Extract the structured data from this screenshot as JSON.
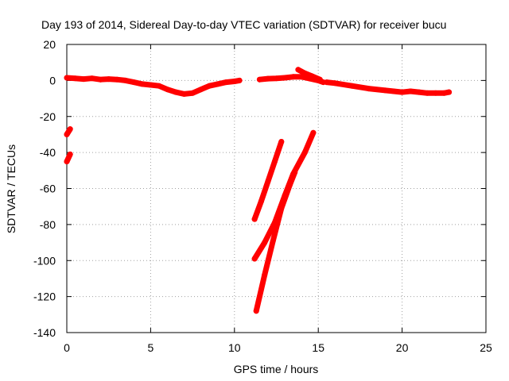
{
  "chart_data": {
    "type": "scatter",
    "title": "Day 193 of 2014, Sidereal Day-to-day VTEC variation (SDTVAR) for receiver bucu",
    "xlabel": "GPS time / hours",
    "ylabel": "SDTVAR / TECUs",
    "xlim": [
      0,
      25
    ],
    "ylim": [
      -140,
      20
    ],
    "xticks": [
      "0",
      "5",
      "10",
      "15",
      "20",
      "25"
    ],
    "yticks": [
      "20",
      "0",
      "-20",
      "-40",
      "-60",
      "-80",
      "-100",
      "-120",
      "-140"
    ],
    "grid": true,
    "color": "#ff0000",
    "series": [
      {
        "name": "main-band",
        "points": [
          [
            0.0,
            1.5
          ],
          [
            0.5,
            1.2
          ],
          [
            1.0,
            0.8
          ],
          [
            1.5,
            1.2
          ],
          [
            2.0,
            0.5
          ],
          [
            2.5,
            0.8
          ],
          [
            3.0,
            0.5
          ],
          [
            3.5,
            0.0
          ],
          [
            4.0,
            -1.0
          ],
          [
            4.5,
            -2.0
          ],
          [
            5.0,
            -2.5
          ],
          [
            5.5,
            -3.0
          ],
          [
            6.0,
            -5.0
          ],
          [
            6.5,
            -6.5
          ],
          [
            7.0,
            -7.5
          ],
          [
            7.5,
            -7.0
          ],
          [
            8.0,
            -5.0
          ],
          [
            8.5,
            -3.0
          ],
          [
            9.0,
            -2.0
          ],
          [
            9.5,
            -1.0
          ],
          [
            10.0,
            -0.5
          ],
          [
            10.3,
            0.0
          ]
        ]
      },
      {
        "name": "segment-2",
        "points": [
          [
            11.5,
            0.5
          ],
          [
            12.0,
            1.0
          ],
          [
            12.5,
            1.2
          ],
          [
            13.0,
            1.5
          ],
          [
            13.5,
            2.0
          ],
          [
            14.0,
            2.0
          ],
          [
            14.5,
            1.0
          ],
          [
            15.0,
            0.0
          ],
          [
            15.3,
            -1.0
          ]
        ]
      },
      {
        "name": "segment-2-spur",
        "points": [
          [
            13.8,
            6.0
          ],
          [
            14.2,
            4.0
          ],
          [
            14.6,
            2.5
          ],
          [
            15.1,
            0.5
          ]
        ]
      },
      {
        "name": "segment-3",
        "points": [
          [
            15.5,
            -1.0
          ],
          [
            16.0,
            -1.5
          ],
          [
            17.0,
            -3.0
          ],
          [
            18.0,
            -4.5
          ],
          [
            19.0,
            -5.5
          ],
          [
            19.5,
            -6.0
          ],
          [
            20.0,
            -6.5
          ],
          [
            20.5,
            -6.0
          ],
          [
            21.0,
            -6.5
          ],
          [
            21.5,
            -7.0
          ],
          [
            22.0,
            -7.0
          ],
          [
            22.5,
            -7.0
          ],
          [
            22.8,
            -6.5
          ]
        ]
      },
      {
        "name": "left-edge-upper",
        "points": [
          [
            0.0,
            -30.0
          ],
          [
            0.2,
            -27.0
          ]
        ]
      },
      {
        "name": "left-edge-lower",
        "points": [
          [
            0.0,
            -45.0
          ],
          [
            0.2,
            -41.0
          ]
        ]
      },
      {
        "name": "descending-track-1",
        "points": [
          [
            11.2,
            -77.0
          ],
          [
            11.6,
            -67.0
          ],
          [
            12.0,
            -56.0
          ],
          [
            12.4,
            -45.0
          ],
          [
            12.8,
            -34.0
          ]
        ]
      },
      {
        "name": "descending-track-2",
        "points": [
          [
            11.2,
            -99.0
          ],
          [
            11.8,
            -90.0
          ],
          [
            12.4,
            -79.0
          ],
          [
            13.0,
            -64.0
          ],
          [
            13.5,
            -52.0
          ],
          [
            14.2,
            -40.0
          ],
          [
            14.7,
            -29.0
          ]
        ]
      },
      {
        "name": "descending-track-3",
        "points": [
          [
            11.3,
            -128.0
          ],
          [
            11.8,
            -108.0
          ],
          [
            12.3,
            -89.0
          ],
          [
            12.8,
            -71.0
          ],
          [
            13.3,
            -58.0
          ],
          [
            13.6,
            -51.0
          ]
        ]
      }
    ]
  }
}
